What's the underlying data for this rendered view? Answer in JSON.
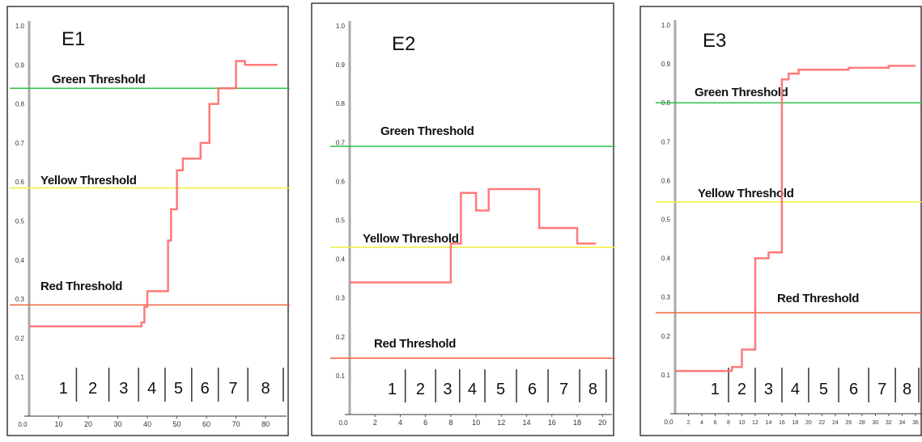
{
  "colors": {
    "green": "#2fc24a",
    "yellow": "#f3ee3c",
    "red_line": "#f2643f",
    "series": "#ff6b6b",
    "axis": "#aaaaaa",
    "frame": "#3a3a3a"
  },
  "chart_data": [
    {
      "type": "line",
      "title": "E1",
      "xlabel": "",
      "ylabel": "",
      "ylim": [
        0.0,
        1.0
      ],
      "xlim": [
        0,
        86
      ],
      "x_ticks": [
        "10",
        "20",
        "30",
        "40",
        "50",
        "60",
        "70",
        "80"
      ],
      "x_tick_values": [
        10,
        20,
        30,
        40,
        50,
        60,
        70,
        80
      ],
      "x_zero_label": "0.0",
      "y_ticks": [
        "0.1",
        "0.2",
        "0.3",
        "0.4",
        "0.5",
        "0.6",
        "0.7",
        "0.8",
        "0.9",
        "1.0"
      ],
      "y_tick_values": [
        0.1,
        0.2,
        0.3,
        0.4,
        0.5,
        0.6,
        0.7,
        0.8,
        0.9,
        1.0
      ],
      "thresholds": [
        {
          "label": "Green Threshold",
          "value": 0.84,
          "color_key": "green"
        },
        {
          "label": "Yellow Threshold",
          "value": 0.585,
          "color_key": "yellow"
        },
        {
          "label": "Red Threshold",
          "value": 0.285,
          "color_key": "red_line"
        }
      ],
      "phases": [
        "1",
        "2",
        "3",
        "4",
        "5",
        "6",
        "7",
        "8"
      ],
      "phase_bounds": [
        5,
        16,
        27,
        37,
        46,
        55,
        64,
        74,
        86
      ],
      "series": [
        {
          "values": [
            [
              0,
              0.23
            ],
            [
              38,
              0.23
            ],
            [
              38,
              0.24
            ],
            [
              39,
              0.24
            ],
            [
              39,
              0.28
            ],
            [
              40,
              0.28
            ],
            [
              40,
              0.32
            ],
            [
              47,
              0.32
            ],
            [
              47,
              0.45
            ],
            [
              48,
              0.45
            ],
            [
              48,
              0.53
            ],
            [
              50,
              0.53
            ],
            [
              50,
              0.63
            ],
            [
              52,
              0.63
            ],
            [
              52,
              0.66
            ],
            [
              58,
              0.66
            ],
            [
              58,
              0.7
            ],
            [
              61,
              0.7
            ],
            [
              61,
              0.8
            ],
            [
              64,
              0.8
            ],
            [
              64,
              0.84
            ],
            [
              70,
              0.84
            ],
            [
              70,
              0.91
            ],
            [
              73,
              0.91
            ],
            [
              73,
              0.9
            ],
            [
              84,
              0.9
            ]
          ]
        }
      ]
    },
    {
      "type": "line",
      "title": "E2",
      "xlabel": "",
      "ylabel": "",
      "ylim": [
        0.0,
        1.0
      ],
      "xlim": [
        0,
        20.5
      ],
      "x_ticks": [
        "2",
        "4",
        "6",
        "8",
        "10",
        "12",
        "14",
        "16",
        "18",
        "20"
      ],
      "x_tick_values": [
        2,
        4,
        6,
        8,
        10,
        12,
        14,
        16,
        18,
        20
      ],
      "x_zero_label": "0.0",
      "y_ticks": [
        "0.1",
        "0.2",
        "0.3",
        "0.4",
        "0.5",
        "0.6",
        "0.7",
        "0.8",
        "0.9",
        "1.0"
      ],
      "y_tick_values": [
        0.1,
        0.2,
        0.3,
        0.4,
        0.5,
        0.6,
        0.7,
        0.8,
        0.9,
        1.0
      ],
      "thresholds": [
        {
          "label": "Green Threshold",
          "value": 0.69,
          "color_key": "green"
        },
        {
          "label": "Yellow Threshold",
          "value": 0.43,
          "color_key": "yellow"
        },
        {
          "label": "Red Threshold",
          "value": 0.145,
          "color_key": "red_line"
        }
      ],
      "phases": [
        "1",
        "2",
        "3",
        "4",
        "5",
        "6",
        "7",
        "8"
      ],
      "phase_bounds": [
        1.8,
        4.4,
        6.8,
        8.7,
        10.7,
        13.2,
        15.7,
        18.2,
        20.3
      ],
      "series": [
        {
          "values": [
            [
              0,
              0.34
            ],
            [
              8,
              0.34
            ],
            [
              8,
              0.44
            ],
            [
              8.8,
              0.44
            ],
            [
              8.8,
              0.57
            ],
            [
              10,
              0.57
            ],
            [
              10,
              0.525
            ],
            [
              11,
              0.525
            ],
            [
              11,
              0.58
            ],
            [
              15,
              0.58
            ],
            [
              15,
              0.48
            ],
            [
              18,
              0.48
            ],
            [
              18,
              0.44
            ],
            [
              19.5,
              0.44
            ]
          ]
        }
      ]
    },
    {
      "type": "line",
      "title": "E3",
      "xlabel": "",
      "ylabel": "",
      "ylim": [
        0.0,
        1.0
      ],
      "xlim": [
        0,
        36.5
      ],
      "x_ticks": [
        "2",
        "4",
        "6",
        "8",
        "10",
        "12",
        "14",
        "16",
        "18",
        "20",
        "22",
        "24",
        "26",
        "28",
        "30",
        "32",
        "34",
        "36"
      ],
      "x_tick_values": [
        2,
        4,
        6,
        8,
        10,
        12,
        14,
        16,
        18,
        20,
        22,
        24,
        26,
        28,
        30,
        32,
        34,
        36
      ],
      "x_zero_label": "0.0",
      "y_ticks": [
        "0.1",
        "0.2",
        "0.3",
        "0.4",
        "0.5",
        "0.6",
        "0.7",
        "0.8",
        "0.9",
        "1.0"
      ],
      "y_tick_values": [
        0.1,
        0.2,
        0.3,
        0.4,
        0.5,
        0.6,
        0.7,
        0.8,
        0.9,
        1.0
      ],
      "thresholds": [
        {
          "label": "Green Threshold",
          "value": 0.8,
          "color_key": "green"
        },
        {
          "label": "Yellow Threshold",
          "value": 0.545,
          "color_key": "yellow"
        },
        {
          "label": "Red Threshold",
          "value": 0.26,
          "color_key": "red_line"
        }
      ],
      "phases": [
        "1",
        "2",
        "3",
        "4",
        "5",
        "6",
        "7",
        "8"
      ],
      "phase_bounds": [
        3,
        8,
        12,
        16,
        20,
        24.5,
        29,
        33,
        36.5
      ],
      "series": [
        {
          "values": [
            [
              0,
              0.11
            ],
            [
              8.5,
              0.11
            ],
            [
              8.5,
              0.12
            ],
            [
              10,
              0.12
            ],
            [
              10,
              0.165
            ],
            [
              12,
              0.165
            ],
            [
              12,
              0.4
            ],
            [
              14,
              0.4
            ],
            [
              14,
              0.415
            ],
            [
              16,
              0.415
            ],
            [
              16,
              0.86
            ],
            [
              17,
              0.86
            ],
            [
              17,
              0.875
            ],
            [
              18.5,
              0.875
            ],
            [
              18.5,
              0.885
            ],
            [
              26,
              0.885
            ],
            [
              26,
              0.89
            ],
            [
              32,
              0.89
            ],
            [
              32,
              0.895
            ],
            [
              36,
              0.895
            ]
          ]
        }
      ]
    }
  ]
}
